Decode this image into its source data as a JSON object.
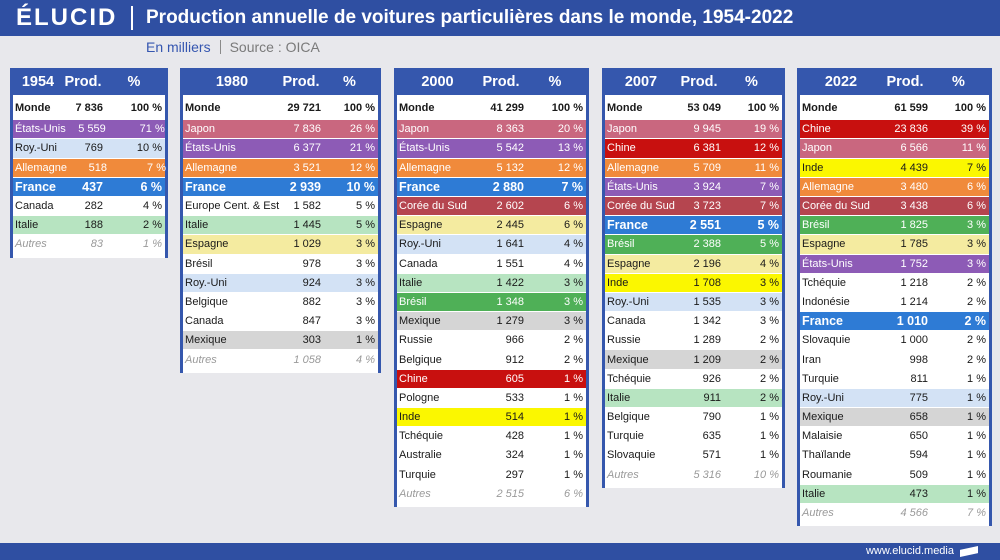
{
  "brand": {
    "logo": "ÉLUCID",
    "website": "www.elucid.media"
  },
  "header": {
    "source": "Source : OICA"
  },
  "colors": {
    "header_band": "#2f4fa2",
    "table_header": "#3557ad",
    "unit_text": "#3556b0"
  },
  "chart_data": {
    "type": "table",
    "title": "Production annuelle de voitures particulières dans le monde, 1954-2022",
    "unit": "En milliers",
    "columns": [
      "Prod.",
      "%"
    ],
    "palette": {
      "purple": {
        "bg": "#8d5bb6",
        "fg": "#ffffff"
      },
      "light-blue": {
        "bg": "#d3e2f5",
        "fg": "#1a1a1a"
      },
      "orange": {
        "bg": "#f08a3b",
        "fg": "#ffffff"
      },
      "blue": {
        "bg": "#2e7bd5",
        "fg": "#ffffff"
      },
      "light-green": {
        "bg": "#b7e4c1",
        "fg": "#1a1a1a"
      },
      "pink": {
        "bg": "#c9677f",
        "fg": "#ffffff"
      },
      "light-yellow": {
        "bg": "#f4eba0",
        "fg": "#1a1a1a"
      },
      "gray": {
        "bg": "#d5d5d5",
        "fg": "#1a1a1a"
      },
      "brick": {
        "bg": "#b5454f",
        "fg": "#ffffff"
      },
      "green": {
        "bg": "#4fb057",
        "fg": "#ffffff"
      },
      "red": {
        "bg": "#c8100f",
        "fg": "#ffffff"
      },
      "yellow": {
        "bg": "#fbf700",
        "fg": "#1a1a1a"
      }
    },
    "tables": [
      {
        "year": "1954",
        "rows": [
          {
            "label": "Monde",
            "prod": 7836,
            "pct": 100,
            "kind": "total"
          },
          {
            "label": "États-Unis",
            "prod": 5559,
            "pct": 71,
            "color": "purple"
          },
          {
            "label": "Roy.-Uni",
            "prod": 769,
            "pct": 10,
            "color": "light-blue"
          },
          {
            "label": "Allemagne",
            "prod": 518,
            "pct": 7,
            "color": "orange"
          },
          {
            "label": "France",
            "prod": 437,
            "pct": 6,
            "color": "blue",
            "highlight": true
          },
          {
            "label": "Canada",
            "prod": 282,
            "pct": 4
          },
          {
            "label": "Italie",
            "prod": 188,
            "pct": 2,
            "color": "light-green"
          },
          {
            "label": "Autres",
            "prod": 83,
            "pct": 1,
            "kind": "others"
          }
        ]
      },
      {
        "year": "1980",
        "rows": [
          {
            "label": "Monde",
            "prod": 29721,
            "pct": 100,
            "kind": "total"
          },
          {
            "label": "Japon",
            "prod": 7836,
            "pct": 26,
            "color": "pink"
          },
          {
            "label": "États-Unis",
            "prod": 6377,
            "pct": 21,
            "color": "purple"
          },
          {
            "label": "Allemagne",
            "prod": 3521,
            "pct": 12,
            "color": "orange"
          },
          {
            "label": "France",
            "prod": 2939,
            "pct": 10,
            "color": "blue",
            "highlight": true
          },
          {
            "label": "Europe Cent. & Est",
            "prod": 1582,
            "pct": 5
          },
          {
            "label": "Italie",
            "prod": 1445,
            "pct": 5,
            "color": "light-green"
          },
          {
            "label": "Espagne",
            "prod": 1029,
            "pct": 3,
            "color": "light-yellow"
          },
          {
            "label": "Brésil",
            "prod": 978,
            "pct": 3
          },
          {
            "label": "Roy.-Uni",
            "prod": 924,
            "pct": 3,
            "color": "light-blue"
          },
          {
            "label": "Belgique",
            "prod": 882,
            "pct": 3
          },
          {
            "label": "Canada",
            "prod": 847,
            "pct": 3
          },
          {
            "label": "Mexique",
            "prod": 303,
            "pct": 1,
            "color": "gray"
          },
          {
            "label": "Autres",
            "prod": 1058,
            "pct": 4,
            "kind": "others"
          }
        ]
      },
      {
        "year": "2000",
        "rows": [
          {
            "label": "Monde",
            "prod": 41299,
            "pct": 100,
            "kind": "total"
          },
          {
            "label": "Japon",
            "prod": 8363,
            "pct": 20,
            "color": "pink"
          },
          {
            "label": "États-Unis",
            "prod": 5542,
            "pct": 13,
            "color": "purple"
          },
          {
            "label": "Allemagne",
            "prod": 5132,
            "pct": 12,
            "color": "orange"
          },
          {
            "label": "France",
            "prod": 2880,
            "pct": 7,
            "color": "blue",
            "highlight": true
          },
          {
            "label": "Corée du Sud",
            "prod": 2602,
            "pct": 6,
            "color": "brick"
          },
          {
            "label": "Espagne",
            "prod": 2445,
            "pct": 6,
            "color": "light-yellow"
          },
          {
            "label": "Roy.-Uni",
            "prod": 1641,
            "pct": 4,
            "color": "light-blue"
          },
          {
            "label": "Canada",
            "prod": 1551,
            "pct": 4
          },
          {
            "label": "Italie",
            "prod": 1422,
            "pct": 3,
            "color": "light-green"
          },
          {
            "label": "Brésil",
            "prod": 1348,
            "pct": 3,
            "color": "green"
          },
          {
            "label": "Mexique",
            "prod": 1279,
            "pct": 3,
            "color": "gray"
          },
          {
            "label": "Russie",
            "prod": 966,
            "pct": 2
          },
          {
            "label": "Belgique",
            "prod": 912,
            "pct": 2
          },
          {
            "label": "Chine",
            "prod": 605,
            "pct": 1,
            "color": "red"
          },
          {
            "label": "Pologne",
            "prod": 533,
            "pct": 1
          },
          {
            "label": "Inde",
            "prod": 514,
            "pct": 1,
            "color": "yellow"
          },
          {
            "label": "Tchéquie",
            "prod": 428,
            "pct": 1
          },
          {
            "label": "Australie",
            "prod": 324,
            "pct": 1
          },
          {
            "label": "Turquie",
            "prod": 297,
            "pct": 1
          },
          {
            "label": "Autres",
            "prod": 2515,
            "pct": 6,
            "kind": "others"
          }
        ]
      },
      {
        "year": "2007",
        "rows": [
          {
            "label": "Monde",
            "prod": 53049,
            "pct": 100,
            "kind": "total"
          },
          {
            "label": "Japon",
            "prod": 9945,
            "pct": 19,
            "color": "pink"
          },
          {
            "label": "Chine",
            "prod": 6381,
            "pct": 12,
            "color": "red"
          },
          {
            "label": "Allemagne",
            "prod": 5709,
            "pct": 11,
            "color": "orange"
          },
          {
            "label": "États-Unis",
            "prod": 3924,
            "pct": 7,
            "color": "purple"
          },
          {
            "label": "Corée du Sud",
            "prod": 3723,
            "pct": 7,
            "color": "brick"
          },
          {
            "label": "France",
            "prod": 2551,
            "pct": 5,
            "color": "blue",
            "highlight": true
          },
          {
            "label": "Brésil",
            "prod": 2388,
            "pct": 5,
            "color": "green"
          },
          {
            "label": "Espagne",
            "prod": 2196,
            "pct": 4,
            "color": "light-yellow"
          },
          {
            "label": "Inde",
            "prod": 1708,
            "pct": 3,
            "color": "yellow"
          },
          {
            "label": "Roy.-Uni",
            "prod": 1535,
            "pct": 3,
            "color": "light-blue"
          },
          {
            "label": "Canada",
            "prod": 1342,
            "pct": 3
          },
          {
            "label": "Russie",
            "prod": 1289,
            "pct": 2
          },
          {
            "label": "Mexique",
            "prod": 1209,
            "pct": 2,
            "color": "gray"
          },
          {
            "label": "Tchéquie",
            "prod": 926,
            "pct": 2
          },
          {
            "label": "Italie",
            "prod": 911,
            "pct": 2,
            "color": "light-green"
          },
          {
            "label": "Belgique",
            "prod": 790,
            "pct": 1
          },
          {
            "label": "Turquie",
            "prod": 635,
            "pct": 1
          },
          {
            "label": "Slovaquie",
            "prod": 571,
            "pct": 1
          },
          {
            "label": "Autres",
            "prod": 5316,
            "pct": 10,
            "kind": "others"
          }
        ]
      },
      {
        "year": "2022",
        "rows": [
          {
            "label": "Monde",
            "prod": 61599,
            "pct": 100,
            "kind": "total"
          },
          {
            "label": "Chine",
            "prod": 23836,
            "pct": 39,
            "color": "red"
          },
          {
            "label": "Japon",
            "prod": 6566,
            "pct": 11,
            "color": "pink"
          },
          {
            "label": "Inde",
            "prod": 4439,
            "pct": 7,
            "color": "yellow"
          },
          {
            "label": "Allemagne",
            "prod": 3480,
            "pct": 6,
            "color": "orange"
          },
          {
            "label": "Corée du Sud",
            "prod": 3438,
            "pct": 6,
            "color": "brick"
          },
          {
            "label": "Brésil",
            "prod": 1825,
            "pct": 3,
            "color": "green"
          },
          {
            "label": "Espagne",
            "prod": 1785,
            "pct": 3,
            "color": "light-yellow"
          },
          {
            "label": "États-Unis",
            "prod": 1752,
            "pct": 3,
            "color": "purple"
          },
          {
            "label": "Tchéquie",
            "prod": 1218,
            "pct": 2
          },
          {
            "label": "Indonésie",
            "prod": 1214,
            "pct": 2
          },
          {
            "label": "France",
            "prod": 1010,
            "pct": 2,
            "color": "blue",
            "highlight": true
          },
          {
            "label": "Slovaquie",
            "prod": 1000,
            "pct": 2
          },
          {
            "label": "Iran",
            "prod": 998,
            "pct": 2
          },
          {
            "label": "Turquie",
            "prod": 811,
            "pct": 1
          },
          {
            "label": "Roy.-Uni",
            "prod": 775,
            "pct": 1,
            "color": "light-blue"
          },
          {
            "label": "Mexique",
            "prod": 658,
            "pct": 1,
            "color": "gray"
          },
          {
            "label": "Malaisie",
            "prod": 650,
            "pct": 1
          },
          {
            "label": "Thaïlande",
            "prod": 594,
            "pct": 1
          },
          {
            "label": "Roumanie",
            "prod": 509,
            "pct": 1
          },
          {
            "label": "Italie",
            "prod": 473,
            "pct": 1,
            "color": "light-green"
          },
          {
            "label": "Autres",
            "prod": 4566,
            "pct": 7,
            "kind": "others"
          }
        ]
      }
    ]
  }
}
